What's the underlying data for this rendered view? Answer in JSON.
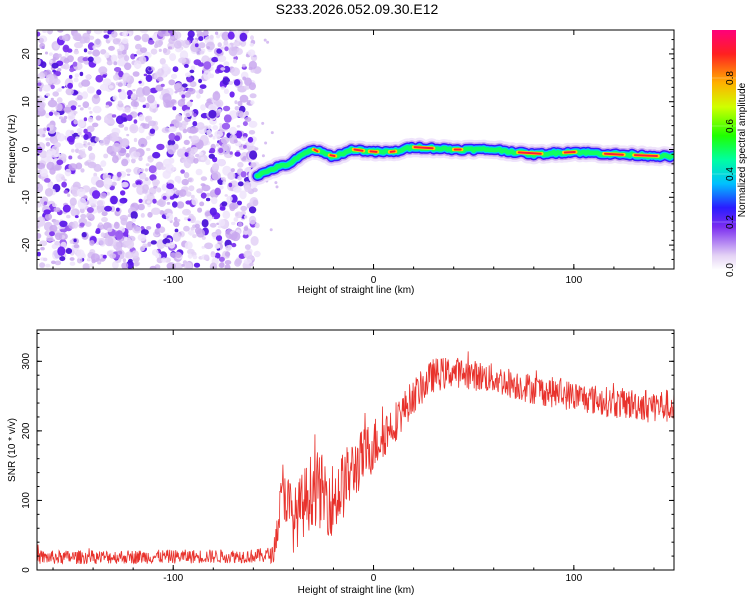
{
  "title": "S233.2026.052.09.30.E12",
  "chart_data": [
    {
      "type": "heatmap",
      "name": "spectrogram",
      "xlabel": "Height of straight line (km)",
      "ylabel": "Frequency (Hz)",
      "xlim": [
        -168,
        150
      ],
      "ylim": [
        -25,
        25
      ],
      "xticks": [
        -100,
        0,
        100
      ],
      "xtick_labels": [
        "-100",
        "0",
        "100"
      ],
      "yticks": [
        20,
        10,
        0,
        -10,
        -20
      ],
      "ytick_labels": [
        "20",
        "10",
        "0",
        "-10",
        "-20"
      ],
      "noise_region_x": [
        -168,
        -58
      ],
      "ridge": {
        "x": [
          -58,
          -50,
          -42,
          -35,
          -30,
          -20,
          -10,
          0,
          10,
          20,
          40,
          60,
          80,
          100,
          120,
          150
        ],
        "freq": [
          -5.5,
          -4,
          -3,
          -1,
          0,
          -1.5,
          0,
          -0.5,
          -0.5,
          0.5,
          0,
          0,
          -1,
          -0.5,
          -1,
          -1.5
        ]
      },
      "colorbar": {
        "label": "Normalized spectral amplitude",
        "range": [
          0,
          1
        ],
        "ticks": [
          0.0,
          0.2,
          0.4,
          0.6,
          0.8
        ],
        "tick_labels": [
          "0.0",
          "0.2",
          "0.4",
          "0.6",
          "0.8"
        ]
      }
    },
    {
      "type": "line",
      "name": "snr",
      "xlabel": "Height of straight line (km)",
      "ylabel": "SNR (10 * v/v)",
      "xlim": [
        -168,
        150
      ],
      "ylim": [
        0,
        345
      ],
      "xticks": [
        -100,
        0,
        100
      ],
      "xtick_labels": [
        "-100",
        "0",
        "100"
      ],
      "yticks": [
        0,
        100,
        200,
        300
      ],
      "ytick_labels": [
        "0",
        "100",
        "200",
        "300"
      ],
      "color": "#e8322c",
      "envelope": {
        "x": [
          -168,
          -60,
          -50,
          -45,
          -40,
          -30,
          -20,
          -10,
          0,
          10,
          20,
          30,
          40,
          60,
          80,
          100,
          120,
          150
        ],
        "mean": [
          18,
          20,
          22,
          120,
          70,
          120,
          100,
          145,
          180,
          210,
          250,
          280,
          285,
          275,
          260,
          250,
          240,
          235
        ],
        "spread": [
          10,
          10,
          12,
          45,
          45,
          55,
          55,
          45,
          40,
          30,
          25,
          25,
          22,
          22,
          22,
          22,
          22,
          25
        ]
      }
    }
  ]
}
